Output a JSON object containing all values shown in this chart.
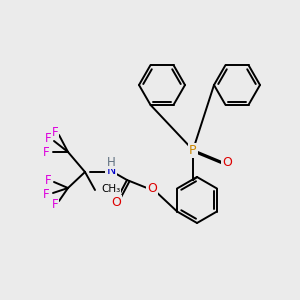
{
  "background_color": "#ebebeb",
  "bond_color": "#000000",
  "atom_colors": {
    "F": "#dd00dd",
    "N": "#0000cc",
    "H": "#607080",
    "O": "#dd0000",
    "P": "#cc8800",
    "C": "#000000"
  },
  "figsize": [
    3.0,
    3.0
  ],
  "dpi": 100
}
